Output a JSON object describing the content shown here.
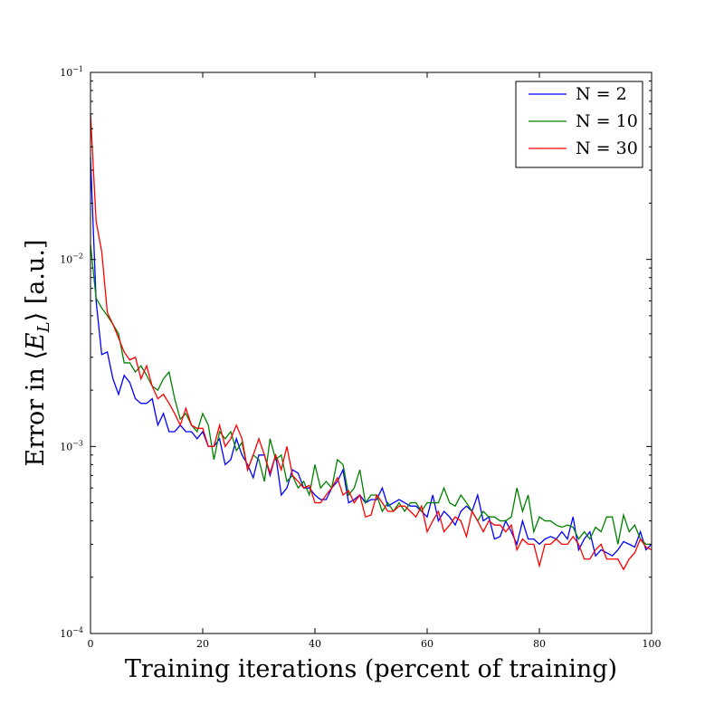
{
  "chart_data": {
    "type": "line",
    "xlabel": "Training iterations (percent of training)",
    "ylabel": "Error in ⟨E_L⟩ [a.u.]",
    "ylabel_parts": {
      "prefix": "Error in ",
      "lang": "⟨",
      "var": "E",
      "sub": "L",
      "rang": "⟩",
      "suffix": " [a.u.]"
    },
    "xlim": [
      0,
      100
    ],
    "ylim": [
      0.0001,
      0.1
    ],
    "yscale": "log",
    "x_ticks": [
      0,
      20,
      40,
      60,
      80,
      100
    ],
    "y_ticks": [
      {
        "value": 0.1,
        "base": "10",
        "exp": "−1"
      },
      {
        "value": 0.01,
        "base": "10",
        "exp": "−2"
      },
      {
        "value": 0.001,
        "base": "10",
        "exp": "−3"
      },
      {
        "value": 0.0001,
        "base": "10",
        "exp": "−4"
      }
    ],
    "grid": false,
    "legend_position": "top-right",
    "x": [
      0,
      1,
      2,
      3,
      4,
      5,
      6,
      7,
      8,
      9,
      10,
      11,
      12,
      13,
      14,
      15,
      16,
      17,
      18,
      19,
      20,
      21,
      22,
      23,
      24,
      25,
      26,
      27,
      28,
      29,
      30,
      31,
      32,
      33,
      34,
      35,
      36,
      37,
      38,
      39,
      40,
      41,
      42,
      43,
      44,
      45,
      46,
      47,
      48,
      49,
      50,
      51,
      52,
      53,
      54,
      55,
      56,
      57,
      58,
      59,
      60,
      61,
      62,
      63,
      64,
      65,
      66,
      67,
      68,
      69,
      70,
      71,
      72,
      73,
      74,
      75,
      76,
      77,
      78,
      79,
      80,
      81,
      82,
      83,
      84,
      85,
      86,
      87,
      88,
      89,
      90,
      91,
      92,
      93,
      94,
      95,
      96,
      97,
      98,
      99,
      100
    ],
    "series": [
      {
        "name": "N = 2",
        "color": "#0000ff",
        "values": [
          0.035,
          0.006,
          0.0031,
          0.0032,
          0.0023,
          0.0019,
          0.0024,
          0.0022,
          0.0018,
          0.0017,
          0.0017,
          0.0018,
          0.0013,
          0.0015,
          0.0012,
          0.0012,
          0.0013,
          0.0012,
          0.0012,
          0.0011,
          0.0012,
          0.001,
          0.001,
          0.0011,
          0.0008,
          0.00085,
          0.0011,
          0.0009,
          0.0008,
          0.00068,
          0.0009,
          0.0009,
          0.0007,
          0.0009,
          0.00055,
          0.0006,
          0.00075,
          0.00072,
          0.0006,
          0.0006,
          0.00055,
          0.00052,
          0.00052,
          0.0006,
          0.00065,
          0.00075,
          0.0005,
          0.00052,
          0.00055,
          0.0005,
          0.00052,
          0.00052,
          0.0006,
          0.00048,
          0.0005,
          0.00052,
          0.0005,
          0.00048,
          0.00048,
          0.00045,
          0.00042,
          0.00055,
          0.0004,
          0.00045,
          0.00042,
          0.00038,
          0.00045,
          0.00048,
          0.00045,
          0.00055,
          0.0004,
          0.00042,
          0.00032,
          0.00033,
          0.0004,
          0.00035,
          0.0003,
          0.0004,
          0.00032,
          0.00032,
          0.0003,
          0.00032,
          0.00033,
          0.00032,
          0.00035,
          0.00032,
          0.00042,
          0.00028,
          0.00032,
          0.00035,
          0.00026,
          0.00028,
          0.00027,
          0.00026,
          0.00028,
          0.00031,
          0.0003,
          0.00029,
          0.00035,
          0.00028,
          0.0003
        ]
      },
      {
        "name": "N = 10",
        "color": "#008000",
        "values": [
          0.012,
          0.0062,
          0.0055,
          0.005,
          0.0045,
          0.004,
          0.0028,
          0.0028,
          0.0025,
          0.0027,
          0.0024,
          0.0021,
          0.002,
          0.0023,
          0.0025,
          0.0018,
          0.0014,
          0.0015,
          0.0013,
          0.0012,
          0.0015,
          0.0013,
          0.00085,
          0.0012,
          0.0011,
          0.0012,
          0.00095,
          0.00105,
          0.00075,
          0.0009,
          0.00085,
          0.00065,
          0.0011,
          0.00085,
          0.0009,
          0.00065,
          0.0007,
          0.0006,
          0.00065,
          0.00055,
          0.0008,
          0.0006,
          0.00065,
          0.0006,
          0.00085,
          0.0008,
          0.00055,
          0.0006,
          0.00075,
          0.0005,
          0.00055,
          0.00055,
          0.00045,
          0.0005,
          0.00045,
          0.0005,
          0.00045,
          0.0005,
          0.0005,
          0.00045,
          0.0005,
          0.0005,
          0.0005,
          0.0006,
          0.0005,
          0.00048,
          0.00055,
          0.0005,
          0.00045,
          0.0004,
          0.00045,
          0.00042,
          0.00042,
          0.0004,
          0.0004,
          0.00042,
          0.0006,
          0.00045,
          0.00055,
          0.00035,
          0.00042,
          0.0004,
          0.0004,
          0.00038,
          0.00037,
          0.00038,
          0.00037,
          0.00032,
          0.00035,
          0.00032,
          0.00037,
          0.00035,
          0.00042,
          0.00042,
          0.0003,
          0.00043,
          0.00035,
          0.00038,
          0.00032,
          0.0003,
          0.0003
        ]
      },
      {
        "name": "N = 30",
        "color": "#ff0000",
        "values": [
          0.06,
          0.016,
          0.011,
          0.0052,
          0.0045,
          0.0038,
          0.0032,
          0.0029,
          0.003,
          0.0023,
          0.0027,
          0.0021,
          0.0018,
          0.0019,
          0.0017,
          0.0015,
          0.0013,
          0.0016,
          0.0013,
          0.00125,
          0.00125,
          0.001,
          0.001,
          0.0013,
          0.001,
          0.0011,
          0.0013,
          0.0011,
          0.00075,
          0.0009,
          0.0011,
          0.0009,
          0.00072,
          0.0009,
          0.00075,
          0.001,
          0.0007,
          0.00065,
          0.0006,
          0.00062,
          0.0005,
          0.0005,
          0.00055,
          0.0006,
          0.00068,
          0.00055,
          0.00058,
          0.0005,
          0.00055,
          0.00042,
          0.00043,
          0.00055,
          0.0005,
          0.00045,
          0.00045,
          0.00048,
          0.00048,
          0.00045,
          0.00042,
          0.00048,
          0.00035,
          0.0004,
          0.00045,
          0.00035,
          0.00038,
          0.00042,
          0.0004,
          0.00033,
          0.00045,
          0.0004,
          0.00035,
          0.0004,
          0.00038,
          0.00038,
          0.00035,
          0.00038,
          0.00028,
          0.00032,
          0.0003,
          0.0003,
          0.00023,
          0.0003,
          0.0003,
          0.00032,
          0.0003,
          0.0003,
          0.00033,
          0.0003,
          0.00025,
          0.00025,
          0.00028,
          0.0003,
          0.00025,
          0.00025,
          0.00025,
          0.00022,
          0.00025,
          0.00027,
          0.00032,
          0.00029,
          0.00028
        ]
      }
    ]
  }
}
